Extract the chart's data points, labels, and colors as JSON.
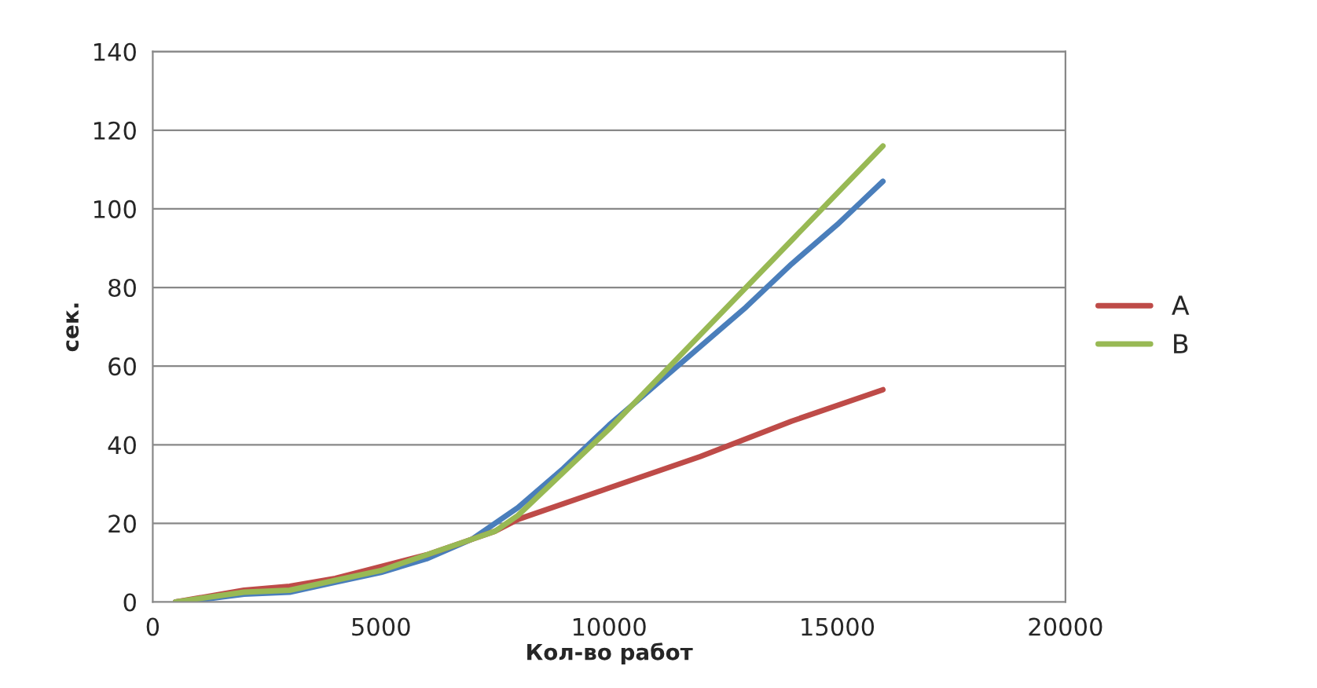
{
  "chart_data": {
    "type": "line",
    "xlabel": "Кол-во работ",
    "ylabel": "сек.",
    "xlim": [
      0,
      20000
    ],
    "xticks": [
      0,
      5000,
      10000,
      15000,
      20000
    ],
    "ylim": [
      0,
      140
    ],
    "yticks": [
      0,
      20,
      40,
      60,
      80,
      100,
      120,
      140
    ],
    "grid": "y",
    "legend": "right",
    "marker": "none",
    "line_style": "solid",
    "series": [
      {
        "color": "#4a7ebb",
        "x": [
          500,
          1000,
          2000,
          3000,
          4000,
          5000,
          6000,
          7000,
          8000,
          9000,
          10000,
          11000,
          12000,
          13000,
          14000,
          15000,
          16000
        ],
        "values": [
          0,
          0.5,
          2,
          2.5,
          5,
          7.5,
          11,
          16,
          24,
          34,
          45,
          55,
          65,
          75,
          86,
          96,
          107
        ]
      },
      {
        "name": "A",
        "color": "#be4b48",
        "x": [
          500,
          2000,
          3000,
          4000,
          5000,
          6000,
          7000,
          7500,
          8000,
          10000,
          12000,
          14000,
          16000
        ],
        "values": [
          0,
          3,
          4,
          6,
          9,
          12,
          16,
          18,
          21,
          29,
          37,
          46,
          54
        ]
      },
      {
        "name": "B",
        "color": "#98b954",
        "x": [
          500,
          2000,
          3000,
          4000,
          5000,
          6000,
          7000,
          7500,
          8000,
          9000,
          10000,
          12000,
          14000,
          16000
        ],
        "values": [
          0,
          2.5,
          3,
          5.5,
          8,
          12,
          16,
          18,
          22,
          33,
          44,
          68,
          92,
          116
        ]
      }
    ]
  }
}
